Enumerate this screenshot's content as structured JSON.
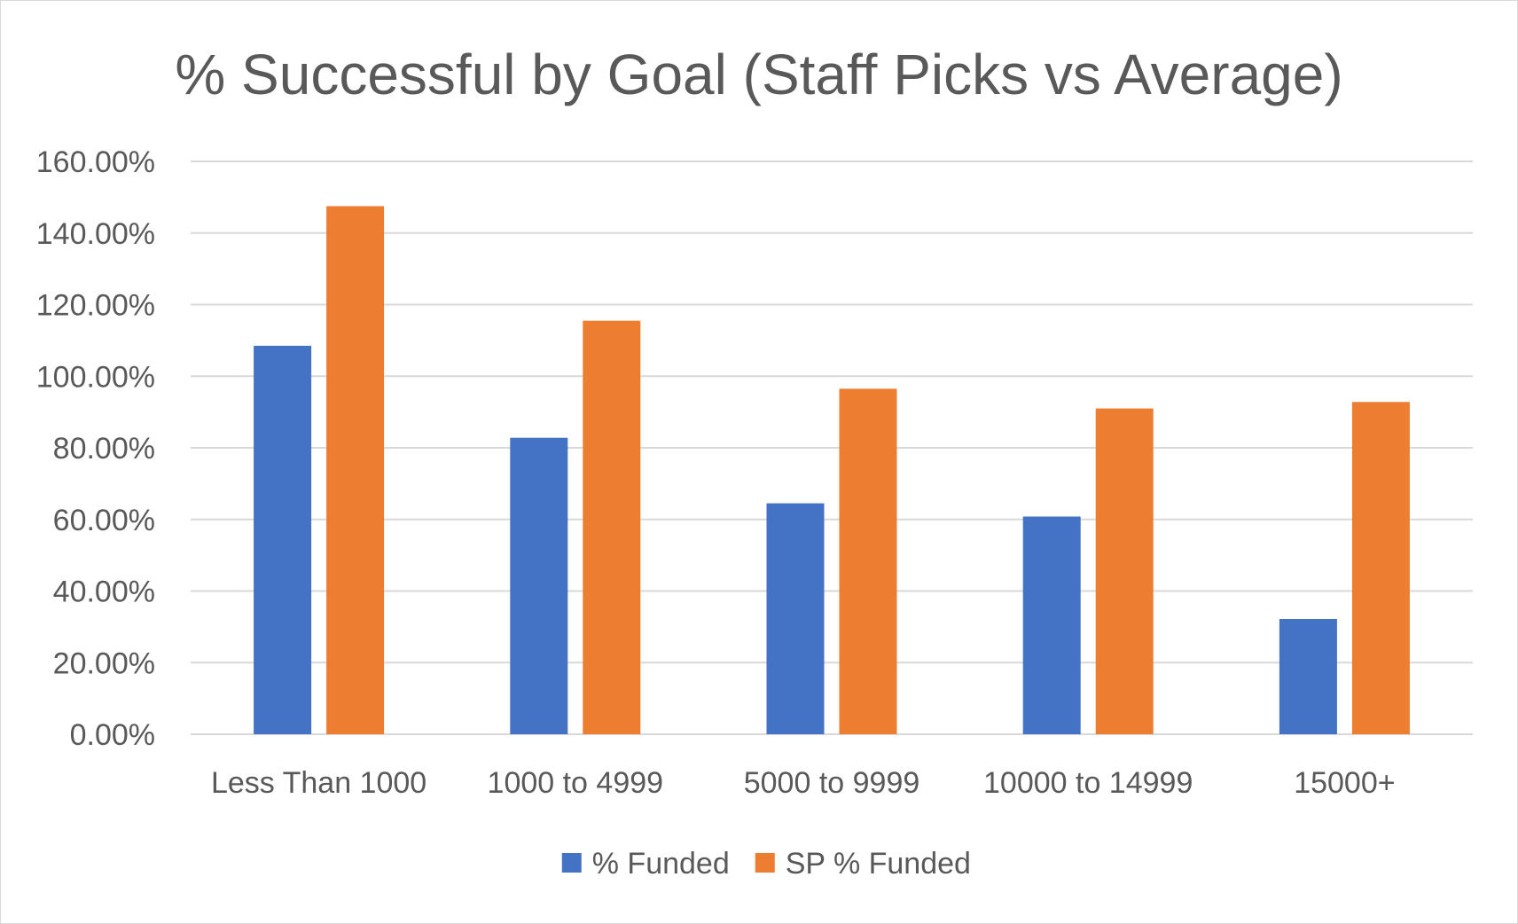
{
  "chart_data": {
    "type": "bar",
    "title": "% Successful by Goal (Staff Picks vs Average)",
    "xlabel": "",
    "ylabel": "",
    "categories": [
      "Less Than 1000",
      "1000 to 4999",
      "5000 to 9999",
      "10000 to 14999",
      "15000+"
    ],
    "series": [
      {
        "name": "% Funded",
        "color": "#4472C4",
        "values": [
          108.5,
          82.8,
          64.5,
          60.8,
          32.2
        ]
      },
      {
        "name": "SP % Funded",
        "color": "#ED7D31",
        "values": [
          147.5,
          115.5,
          96.5,
          91.0,
          92.8
        ]
      }
    ],
    "ylim": [
      0,
      160
    ],
    "yticks": [
      "0.00%",
      "20.00%",
      "40.00%",
      "60.00%",
      "80.00%",
      "100.00%",
      "120.00%",
      "140.00%",
      "160.00%"
    ],
    "grid": true,
    "legend_position": "bottom"
  }
}
